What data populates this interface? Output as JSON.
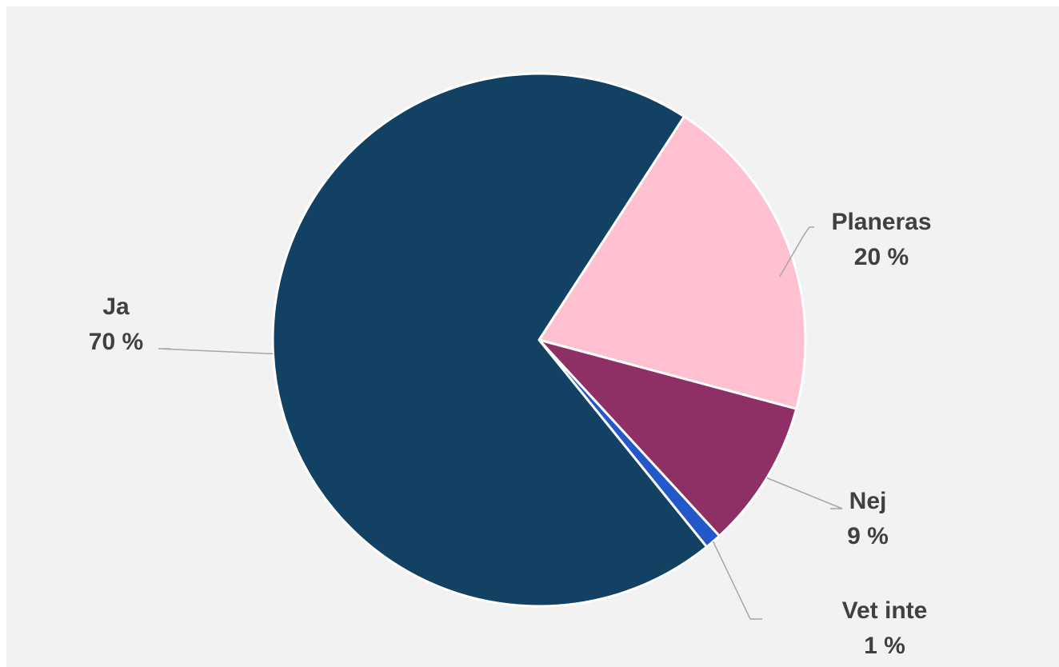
{
  "chart_data": {
    "type": "pie",
    "title": "",
    "start_angle_deg": 57,
    "slices": [
      {
        "label": "Planeras",
        "value_text": "20 %",
        "value": 20,
        "color": "#ffc0d0"
      },
      {
        "label": "Nej",
        "value_text": "9 %",
        "value": 9,
        "color": "#8e3066"
      },
      {
        "label": "Vet inte",
        "value_text": "1 %",
        "value": 1,
        "color": "#2457c9"
      },
      {
        "label": "Ja",
        "value_text": "70 %",
        "value": 70,
        "color": "#124163"
      }
    ],
    "legend": "none",
    "data_labels": "outside with leader lines"
  }
}
